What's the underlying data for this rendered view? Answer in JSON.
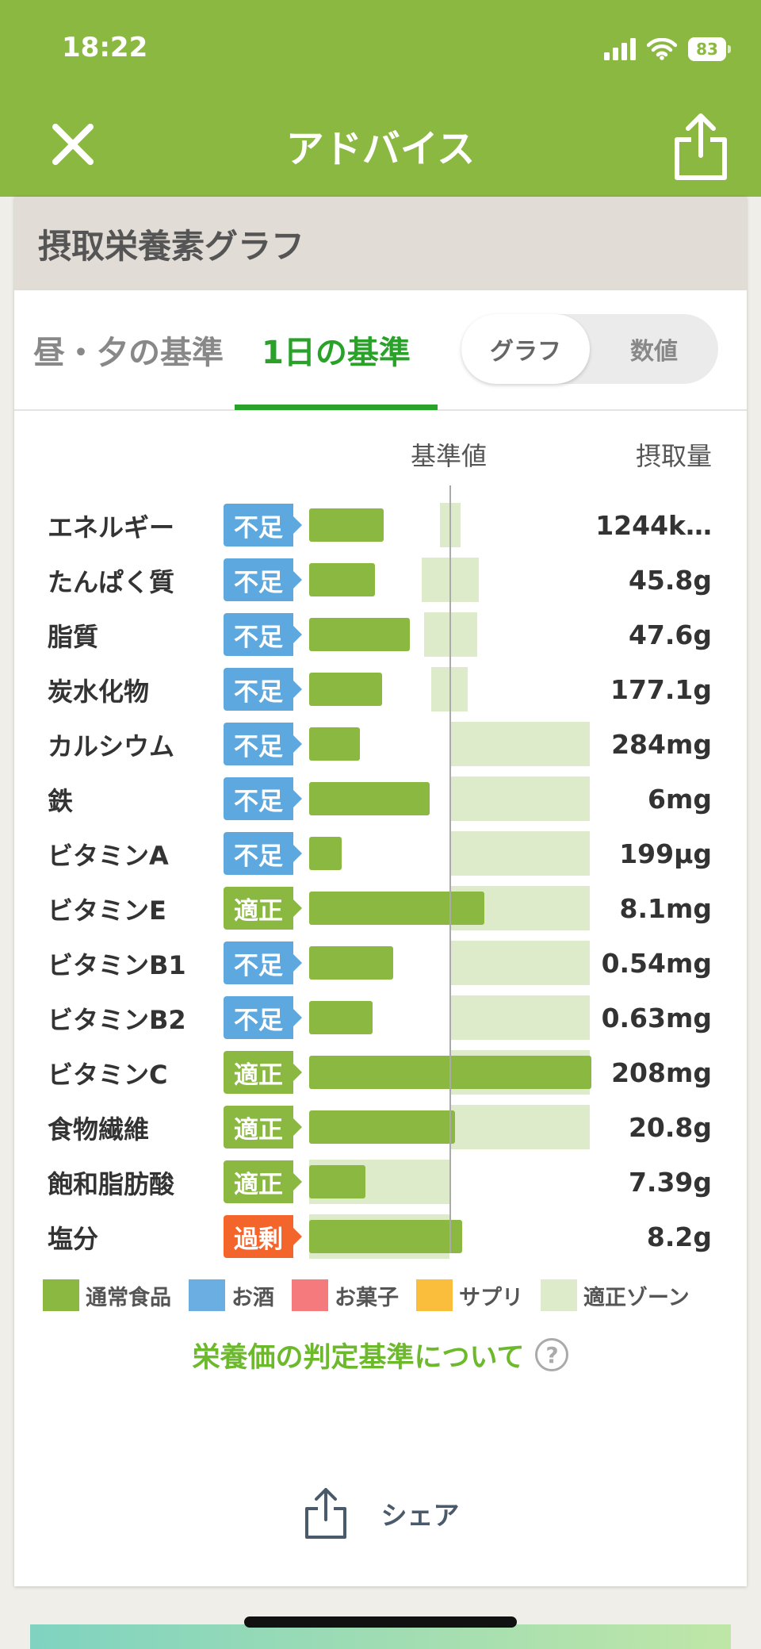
{
  "status": {
    "time": "18:22",
    "battery": "83"
  },
  "nav": {
    "title": "アドバイス"
  },
  "section": {
    "title": "摂取栄養素グラフ"
  },
  "tabs": [
    {
      "label": "昼・夕の基準"
    },
    {
      "label": "1日の基準"
    }
  ],
  "toggle": {
    "graph": "グラフ",
    "numbers": "数値"
  },
  "chart": {
    "ref_label": "基準値",
    "intake_label": "摂取量",
    "rows": [
      {
        "name": "エネルギー",
        "status": "不足",
        "value": "1244k…"
      },
      {
        "name": "たんぱく質",
        "status": "不足",
        "value": "45.8g"
      },
      {
        "name": "脂質",
        "status": "不足",
        "value": "47.6g"
      },
      {
        "name": "炭水化物",
        "status": "不足",
        "value": "177.1g"
      },
      {
        "name": "カルシウム",
        "status": "不足",
        "value": "284mg"
      },
      {
        "name": "鉄",
        "status": "不足",
        "value": "6mg"
      },
      {
        "name": "ビタミンA",
        "status": "不足",
        "value": "199µg"
      },
      {
        "name": "ビタミンE",
        "status": "適正",
        "value": "8.1mg"
      },
      {
        "name": "ビタミンB1",
        "status": "不足",
        "value": "0.54mg"
      },
      {
        "name": "ビタミンB2",
        "status": "不足",
        "value": "0.63mg"
      },
      {
        "name": "ビタミンC",
        "status": "適正",
        "value": "208mg"
      },
      {
        "name": "食物繊維",
        "status": "適正",
        "value": "20.8g"
      },
      {
        "name": "飽和脂肪酸",
        "status": "適正",
        "value": "7.39g"
      },
      {
        "name": "塩分",
        "status": "過剰",
        "value": "8.2g"
      }
    ]
  },
  "chart_data": {
    "type": "bar",
    "categories": [
      "エネルギー",
      "たんぱく質",
      "脂質",
      "炭水化物",
      "カルシウム",
      "鉄",
      "ビタミンA",
      "ビタミンE",
      "ビタミンB1",
      "ビタミンB2",
      "ビタミンC",
      "食物繊維",
      "飽和脂肪酸",
      "塩分"
    ],
    "series": [
      {
        "name": "通常食品",
        "values": [
          0.53,
          0.47,
          0.72,
          0.52,
          0.36,
          0.86,
          0.23,
          1.25,
          0.6,
          0.45,
          2.01,
          1.04,
          0.4,
          1.09
        ]
      }
    ],
    "zones": [
      [
        0.93,
        1.08
      ],
      [
        0.8,
        1.21
      ],
      [
        0.82,
        1.2
      ],
      [
        0.87,
        1.13
      ],
      [
        1.0,
        2.0
      ],
      [
        1.0,
        2.0
      ],
      [
        1.0,
        2.0
      ],
      [
        1.0,
        2.0
      ],
      [
        1.0,
        2.0
      ],
      [
        1.0,
        2.0
      ],
      [
        1.0,
        2.0
      ],
      [
        1.0,
        2.0
      ],
      [
        0.0,
        1.0
      ],
      [
        0.0,
        1.0
      ]
    ],
    "xlim": [
      0,
      2.01
    ],
    "reference": 1.0
  },
  "colors": {
    "insufficient": "#5ea8e0",
    "adequate": "#8ab840",
    "excess": "#f4652b",
    "food": "#8ab840",
    "zone": "#ddebcb"
  },
  "legend": [
    {
      "label": "通常食品",
      "color": "#8ab840"
    },
    {
      "label": "お酒",
      "color": "#6aaee2"
    },
    {
      "label": "お菓子",
      "color": "#f47a7e"
    },
    {
      "label": "サプリ",
      "color": "#fbbd3c"
    },
    {
      "label": "適正ゾーン",
      "color": "#ddebcb"
    }
  ],
  "links": {
    "criteria": "栄養価の判定基準について",
    "share": "シェア"
  }
}
